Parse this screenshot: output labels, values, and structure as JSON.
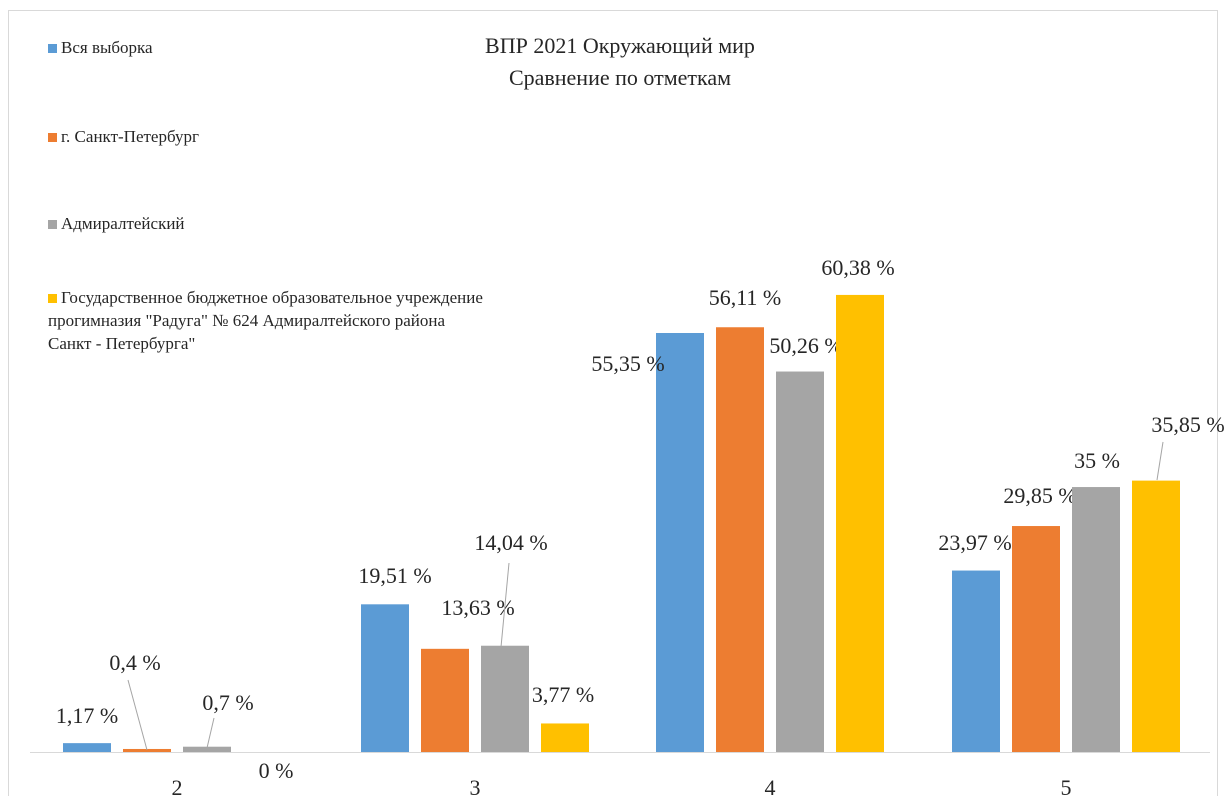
{
  "chart_data": {
    "type": "bar",
    "title": "ВПР 2021 Окружающий мир",
    "subtitle": "Сравнение по отметкам",
    "categories": [
      "2",
      "3",
      "4",
      "5"
    ],
    "series": [
      {
        "name": "Вся выборка",
        "color": "#5b9bd5",
        "values": [
          1.17,
          19.51,
          55.35,
          23.97
        ],
        "value_labels": [
          "1,17 %",
          "19,51 %",
          "55,35 %",
          "23,97 %"
        ]
      },
      {
        "name": "г. Санкт-Петербург",
        "color": "#ed7d31",
        "values": [
          0.4,
          13.63,
          56.11,
          29.85
        ],
        "value_labels": [
          "0,4 %",
          "13,63 %",
          "56,11 %",
          "29,85 %"
        ]
      },
      {
        "name": "Адмиралтейский",
        "color": "#a5a5a5",
        "values": [
          0.7,
          14.04,
          50.26,
          35
        ],
        "value_labels": [
          "0,7 %",
          "14,04 %",
          "50,26 %",
          "35 %"
        ]
      },
      {
        "name": "Государственное бюджетное образовательное учреждение прогимназия \"Радуга\" № 624 Адмиралтейского района Санкт - Петербурга\"",
        "color": "#ffc000",
        "values": [
          0,
          3.77,
          60.38,
          35.85
        ],
        "value_labels": [
          "0 %",
          "3,77 %",
          "60,38 %",
          "35,85 %"
        ]
      }
    ],
    "legend": "left"
  }
}
